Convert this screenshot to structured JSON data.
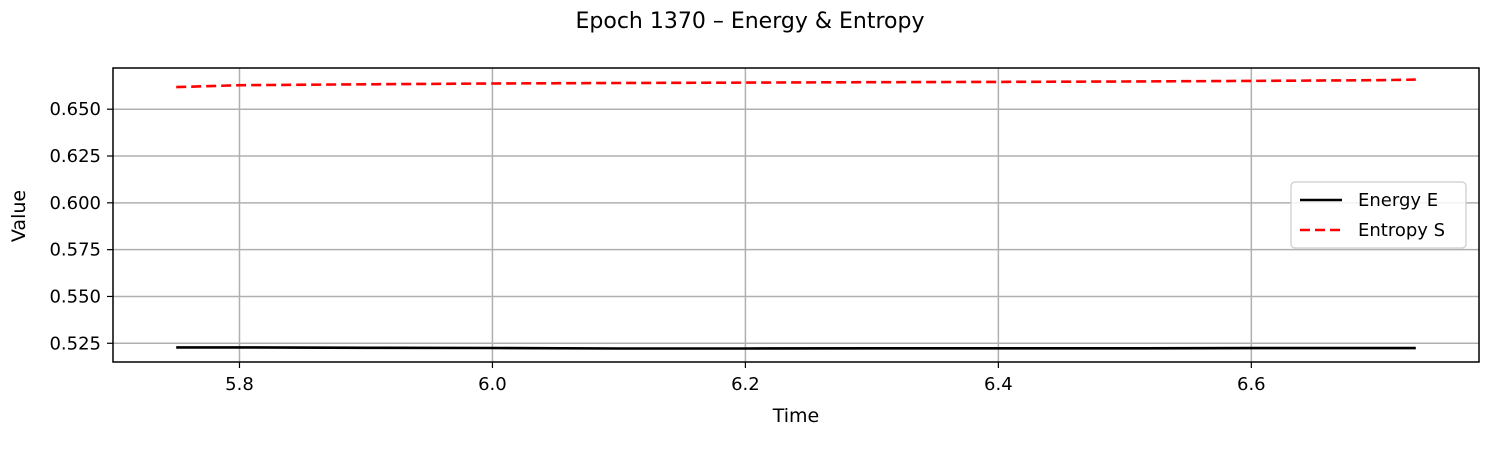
{
  "chart_data": {
    "type": "line",
    "title": "Epoch 1370 – Energy & Entropy",
    "xlabel": "Time",
    "ylabel": "Value",
    "xlim": [
      5.7,
      6.78
    ],
    "ylim": [
      0.515,
      0.672
    ],
    "xticks": [
      5.8,
      6.0,
      6.2,
      6.4,
      6.6
    ],
    "xtick_labels": [
      "5.8",
      "6.0",
      "6.2",
      "6.4",
      "6.6"
    ],
    "yticks": [
      0.525,
      0.55,
      0.575,
      0.6,
      0.625,
      0.65
    ],
    "ytick_labels": [
      "0.525",
      "0.550",
      "0.575",
      "0.600",
      "0.625",
      "0.650"
    ],
    "grid": true,
    "legend_position": "center-right",
    "series": [
      {
        "name": "Energy E",
        "color": "#000000",
        "style": "solid",
        "x": [
          5.75,
          5.8,
          5.9,
          6.0,
          6.1,
          6.2,
          6.3,
          6.4,
          6.5,
          6.6,
          6.7,
          6.73
        ],
        "y": [
          0.5228,
          0.5228,
          0.5226,
          0.5225,
          0.5222,
          0.5222,
          0.5223,
          0.5223,
          0.5223,
          0.5224,
          0.5224,
          0.5224
        ]
      },
      {
        "name": "Entropy S",
        "color": "#ff0000",
        "style": "dashed",
        "x": [
          5.75,
          5.8,
          5.9,
          6.0,
          6.1,
          6.2,
          6.3,
          6.4,
          6.5,
          6.6,
          6.7,
          6.73
        ],
        "y": [
          0.6618,
          0.6628,
          0.6633,
          0.6637,
          0.664,
          0.6642,
          0.6644,
          0.6646,
          0.6648,
          0.6651,
          0.6655,
          0.6658
        ]
      }
    ]
  }
}
